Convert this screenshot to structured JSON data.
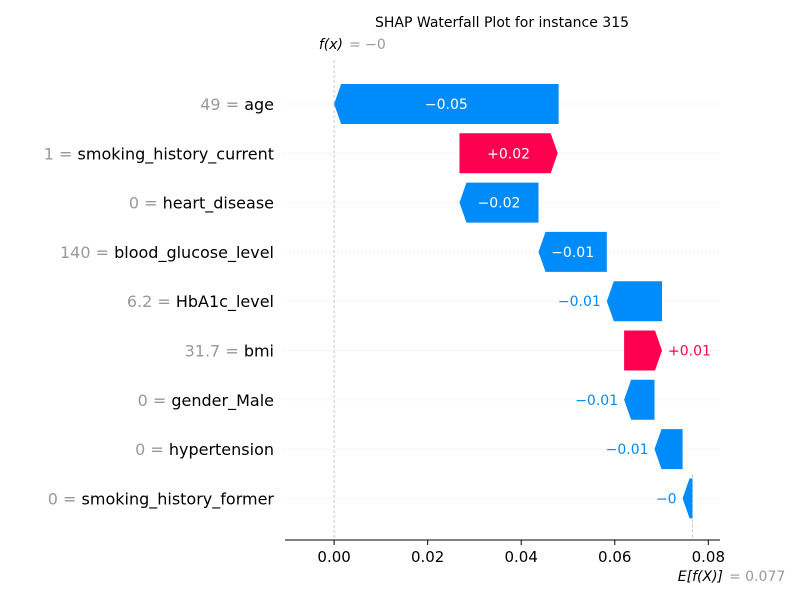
{
  "chart_data": {
    "type": "waterfall",
    "title": "SHAP Waterfall Plot for instance 315",
    "fx_label": "f(x)",
    "fx_value": "= −0",
    "expected_label": "E[f(X)]",
    "expected_value_text": "= 0.077",
    "expected_value": 0.0766,
    "output_value": 0.0,
    "xlim": [
      -0.0105,
      0.0825
    ],
    "x_ticks": [
      {
        "value": 0.0,
        "label": "0.00"
      },
      {
        "value": 0.02,
        "label": "0.02"
      },
      {
        "value": 0.04,
        "label": "0.04"
      },
      {
        "value": 0.06,
        "label": "0.06"
      },
      {
        "value": 0.08,
        "label": "0.08"
      }
    ],
    "colors": {
      "positive": "#ff0051",
      "negative": "#008bfb",
      "feature_value": "#999999",
      "feature_name": "#000000",
      "title": "#000000",
      "gridline": "#dddddd",
      "axis": "#000000"
    },
    "features": [
      {
        "value": "49",
        "name": "age",
        "start": 0.048,
        "end": 0.0,
        "label": "−0.05"
      },
      {
        "value": "1",
        "name": "smoking_history_current",
        "start": 0.0268,
        "end": 0.0478,
        "label": "+0.02"
      },
      {
        "value": "0",
        "name": "heart_disease",
        "start": 0.0437,
        "end": 0.0268,
        "label": "−0.02"
      },
      {
        "value": "140",
        "name": "blood_glucose_level",
        "start": 0.0583,
        "end": 0.0437,
        "label": "−0.01"
      },
      {
        "value": "6.2",
        "name": "HbA1c_level",
        "start": 0.0701,
        "end": 0.0583,
        "label": "−0.01"
      },
      {
        "value": "31.7",
        "name": "bmi",
        "start": 0.062,
        "end": 0.0701,
        "label": "+0.01"
      },
      {
        "value": "0",
        "name": "gender_Male",
        "start": 0.0685,
        "end": 0.062,
        "label": "−0.01"
      },
      {
        "value": "0",
        "name": "hypertension",
        "start": 0.0745,
        "end": 0.0685,
        "label": "−0.01"
      },
      {
        "value": "0",
        "name": "smoking_history_former",
        "start": 0.0766,
        "end": 0.0745,
        "label": "−0"
      }
    ]
  }
}
